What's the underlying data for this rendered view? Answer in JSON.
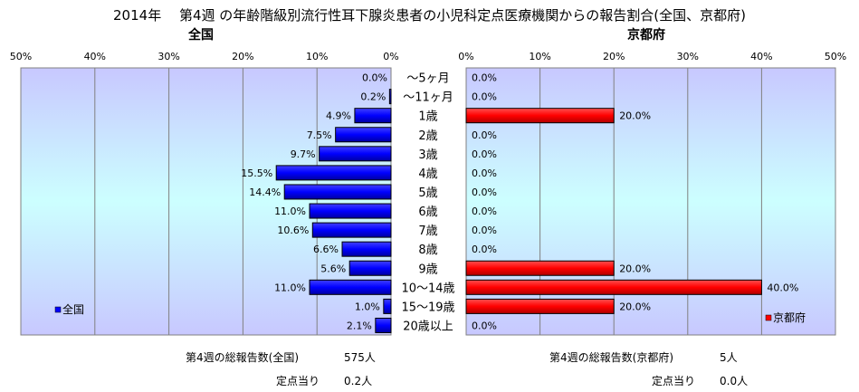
{
  "title": "2014年　 第4週 の年齢階級別流行性耳下腺炎患者の小児科定点医療機関からの報告割合(全国、京都府)",
  "chart_data": [
    {
      "type": "bar",
      "title": "全国",
      "orientation": "horizontal-reversed",
      "categories": [
        "～5ヶ月",
        "～11ヶ月",
        "1歳",
        "2歳",
        "3歳",
        "4歳",
        "5歳",
        "6歳",
        "7歳",
        "8歳",
        "9歳",
        "10～14歳",
        "15～19歳",
        "20歳以上"
      ],
      "series": [
        {
          "name": "全国",
          "values": [
            0.0,
            0.2,
            4.9,
            7.5,
            9.7,
            15.5,
            14.4,
            11.0,
            10.6,
            6.6,
            5.6,
            11.0,
            1.0,
            2.1
          ],
          "labels": [
            "0.0%",
            "0.2%",
            "4.9%",
            "7.5%",
            "9.7%",
            "15.5%",
            "14.4%",
            "11.0%",
            "10.6%",
            "6.6%",
            "5.6%",
            "11.0%",
            "1.0%",
            "2.1%"
          ],
          "color": "#0000ff"
        }
      ],
      "xlim": [
        0,
        50
      ],
      "xticks": [
        "50%",
        "40%",
        "30%",
        "20%",
        "10%",
        "0%"
      ],
      "grid": true,
      "legend": "bottom-left"
    },
    {
      "type": "bar",
      "title": "京都府",
      "orientation": "horizontal",
      "categories": [
        "～5ヶ月",
        "～11ヶ月",
        "1歳",
        "2歳",
        "3歳",
        "4歳",
        "5歳",
        "6歳",
        "7歳",
        "8歳",
        "9歳",
        "10～14歳",
        "15～19歳",
        "20歳以上"
      ],
      "series": [
        {
          "name": "京都府",
          "values": [
            0.0,
            0.0,
            20.0,
            0.0,
            0.0,
            0.0,
            0.0,
            0.0,
            0.0,
            0.0,
            20.0,
            40.0,
            20.0,
            0.0
          ],
          "labels": [
            "0.0%",
            "0.0%",
            "20.0%",
            "0.0%",
            "0.0%",
            "0.0%",
            "0.0%",
            "0.0%",
            "0.0%",
            "0.0%",
            "20.0%",
            "40.0%",
            "20.0%",
            "0.0%"
          ],
          "color": "#ff0000"
        }
      ],
      "xlim": [
        0,
        50
      ],
      "xticks": [
        "0%",
        "10%",
        "20%",
        "30%",
        "40%",
        "50%"
      ],
      "grid": true,
      "legend": "bottom-right"
    }
  ],
  "footer": {
    "national_total_label": "第4週の総報告数(全国)",
    "national_total_value": "575人",
    "national_per_label": "定点当り",
    "national_per_value": "0.2人",
    "kyoto_total_label": "第4週の総報告数(京都府)",
    "kyoto_total_value": "5人",
    "kyoto_per_label": "定点当り",
    "kyoto_per_value": "0.0人"
  }
}
